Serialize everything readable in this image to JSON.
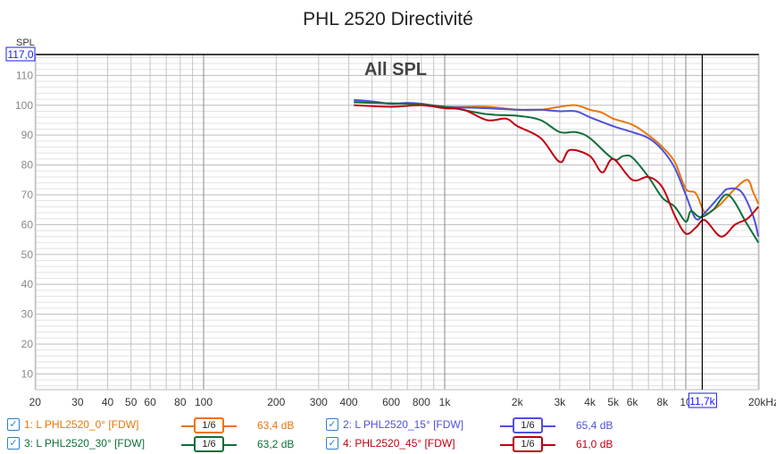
{
  "chart_data": {
    "type": "line",
    "title": "PHL 2520 Directivité",
    "annotation": "All SPL",
    "ylabel": "SPL",
    "xlabel": "Hz",
    "xscale": "log",
    "xlim": [
      20,
      20000
    ],
    "ylim": [
      4.5,
      117
    ],
    "y_top_readout": "117,0",
    "cursor_readout": "11,7k",
    "cursor_x": 11700,
    "grid": true,
    "yticks": [
      "10",
      "20",
      "30",
      "40",
      "50",
      "60",
      "70",
      "80",
      "90",
      "100",
      "110"
    ],
    "xticks": [
      {
        "v": 20,
        "l": "20"
      },
      {
        "v": 30,
        "l": "30"
      },
      {
        "v": 40,
        "l": "40"
      },
      {
        "v": 50,
        "l": "50"
      },
      {
        "v": 60,
        "l": "60"
      },
      {
        "v": 80,
        "l": "80"
      },
      {
        "v": 100,
        "l": "100"
      },
      {
        "v": 200,
        "l": "200"
      },
      {
        "v": 300,
        "l": "300"
      },
      {
        "v": 400,
        "l": "400"
      },
      {
        "v": 600,
        "l": "600"
      },
      {
        "v": 800,
        "l": "800"
      },
      {
        "v": 1000,
        "l": "1k"
      },
      {
        "v": 2000,
        "l": "2k"
      },
      {
        "v": 3000,
        "l": "3k"
      },
      {
        "v": 4000,
        "l": "4k"
      },
      {
        "v": 5000,
        "l": "5k"
      },
      {
        "v": 6000,
        "l": "6k"
      },
      {
        "v": 8000,
        "l": "8k"
      },
      {
        "v": 10000,
        "l": "10"
      },
      {
        "v": 20000,
        "l": "20kHz"
      }
    ],
    "series": [
      {
        "name": "1: L PHL2520_0° [FDW]",
        "color": "#e8760a",
        "smoothing": "1/6",
        "value": "63,4 dB",
        "points": [
          [
            420,
            101.5
          ],
          [
            500,
            101
          ],
          [
            600,
            100.5
          ],
          [
            700,
            100.7
          ],
          [
            800,
            100.5
          ],
          [
            1000,
            99.5
          ],
          [
            1500,
            99.5
          ],
          [
            2000,
            98.5
          ],
          [
            2500,
            98.5
          ],
          [
            3000,
            99.5
          ],
          [
            3500,
            100
          ],
          [
            4000,
            98.5
          ],
          [
            4500,
            97.5
          ],
          [
            5000,
            95.5
          ],
          [
            6000,
            93.5
          ],
          [
            7000,
            90
          ],
          [
            8000,
            86
          ],
          [
            9000,
            81
          ],
          [
            10000,
            72
          ],
          [
            11000,
            70.5
          ],
          [
            12000,
            64
          ],
          [
            13000,
            65
          ],
          [
            14000,
            67
          ],
          [
            16000,
            72
          ],
          [
            18000,
            75
          ],
          [
            19000,
            71
          ],
          [
            20000,
            67
          ]
        ]
      },
      {
        "name": "2: L PHL2520_15° [FDW]",
        "color": "#5050d8",
        "smoothing": "1/6",
        "value": "65,4 dB",
        "points": [
          [
            420,
            101.8
          ],
          [
            500,
            101.3
          ],
          [
            600,
            100.5
          ],
          [
            700,
            100.8
          ],
          [
            800,
            100.5
          ],
          [
            1000,
            99.5
          ],
          [
            1500,
            99
          ],
          [
            2000,
            98.5
          ],
          [
            2500,
            98.5
          ],
          [
            3000,
            98
          ],
          [
            3500,
            98
          ],
          [
            4000,
            96
          ],
          [
            5000,
            93
          ],
          [
            6000,
            91
          ],
          [
            7000,
            89
          ],
          [
            8000,
            85
          ],
          [
            9000,
            79
          ],
          [
            10000,
            70
          ],
          [
            11000,
            62
          ],
          [
            12000,
            64
          ],
          [
            14000,
            70
          ],
          [
            15000,
            72
          ],
          [
            17000,
            71
          ],
          [
            19000,
            63
          ],
          [
            20000,
            56
          ]
        ]
      },
      {
        "name": "3: L PHL2520_30° [FDW]",
        "color": "#0e6e3a",
        "smoothing": "1/6",
        "value": "63,2 dB",
        "points": [
          [
            420,
            101
          ],
          [
            500,
            100.8
          ],
          [
            700,
            100.5
          ],
          [
            1000,
            99.5
          ],
          [
            1500,
            97
          ],
          [
            2000,
            96.5
          ],
          [
            2500,
            95
          ],
          [
            3000,
            91
          ],
          [
            3500,
            91
          ],
          [
            4000,
            89
          ],
          [
            5000,
            82
          ],
          [
            5500,
            83
          ],
          [
            6000,
            82.5
          ],
          [
            7000,
            76
          ],
          [
            8000,
            69
          ],
          [
            9000,
            66
          ],
          [
            10000,
            61
          ],
          [
            10500,
            64.5
          ],
          [
            11500,
            62.5
          ],
          [
            13000,
            65
          ],
          [
            15000,
            70
          ],
          [
            18000,
            60
          ],
          [
            20000,
            54
          ]
        ]
      },
      {
        "name": "4: PHL2520_45° [FDW]",
        "color": "#c00010",
        "smoothing": "1/6",
        "value": "61,0 dB",
        "points": [
          [
            420,
            100
          ],
          [
            600,
            99.5
          ],
          [
            800,
            100
          ],
          [
            1000,
            99
          ],
          [
            1200,
            98.5
          ],
          [
            1500,
            95
          ],
          [
            1800,
            95.5
          ],
          [
            2000,
            93
          ],
          [
            2500,
            89
          ],
          [
            3000,
            81
          ],
          [
            3300,
            85
          ],
          [
            4000,
            83
          ],
          [
            4500,
            77.5
          ],
          [
            5000,
            82
          ],
          [
            6000,
            75
          ],
          [
            7000,
            76
          ],
          [
            8000,
            72.5
          ],
          [
            9000,
            63
          ],
          [
            10000,
            57
          ],
          [
            11000,
            59
          ],
          [
            12000,
            61.5
          ],
          [
            14000,
            56
          ],
          [
            16000,
            60
          ],
          [
            18000,
            62
          ],
          [
            20000,
            66
          ]
        ]
      }
    ]
  }
}
